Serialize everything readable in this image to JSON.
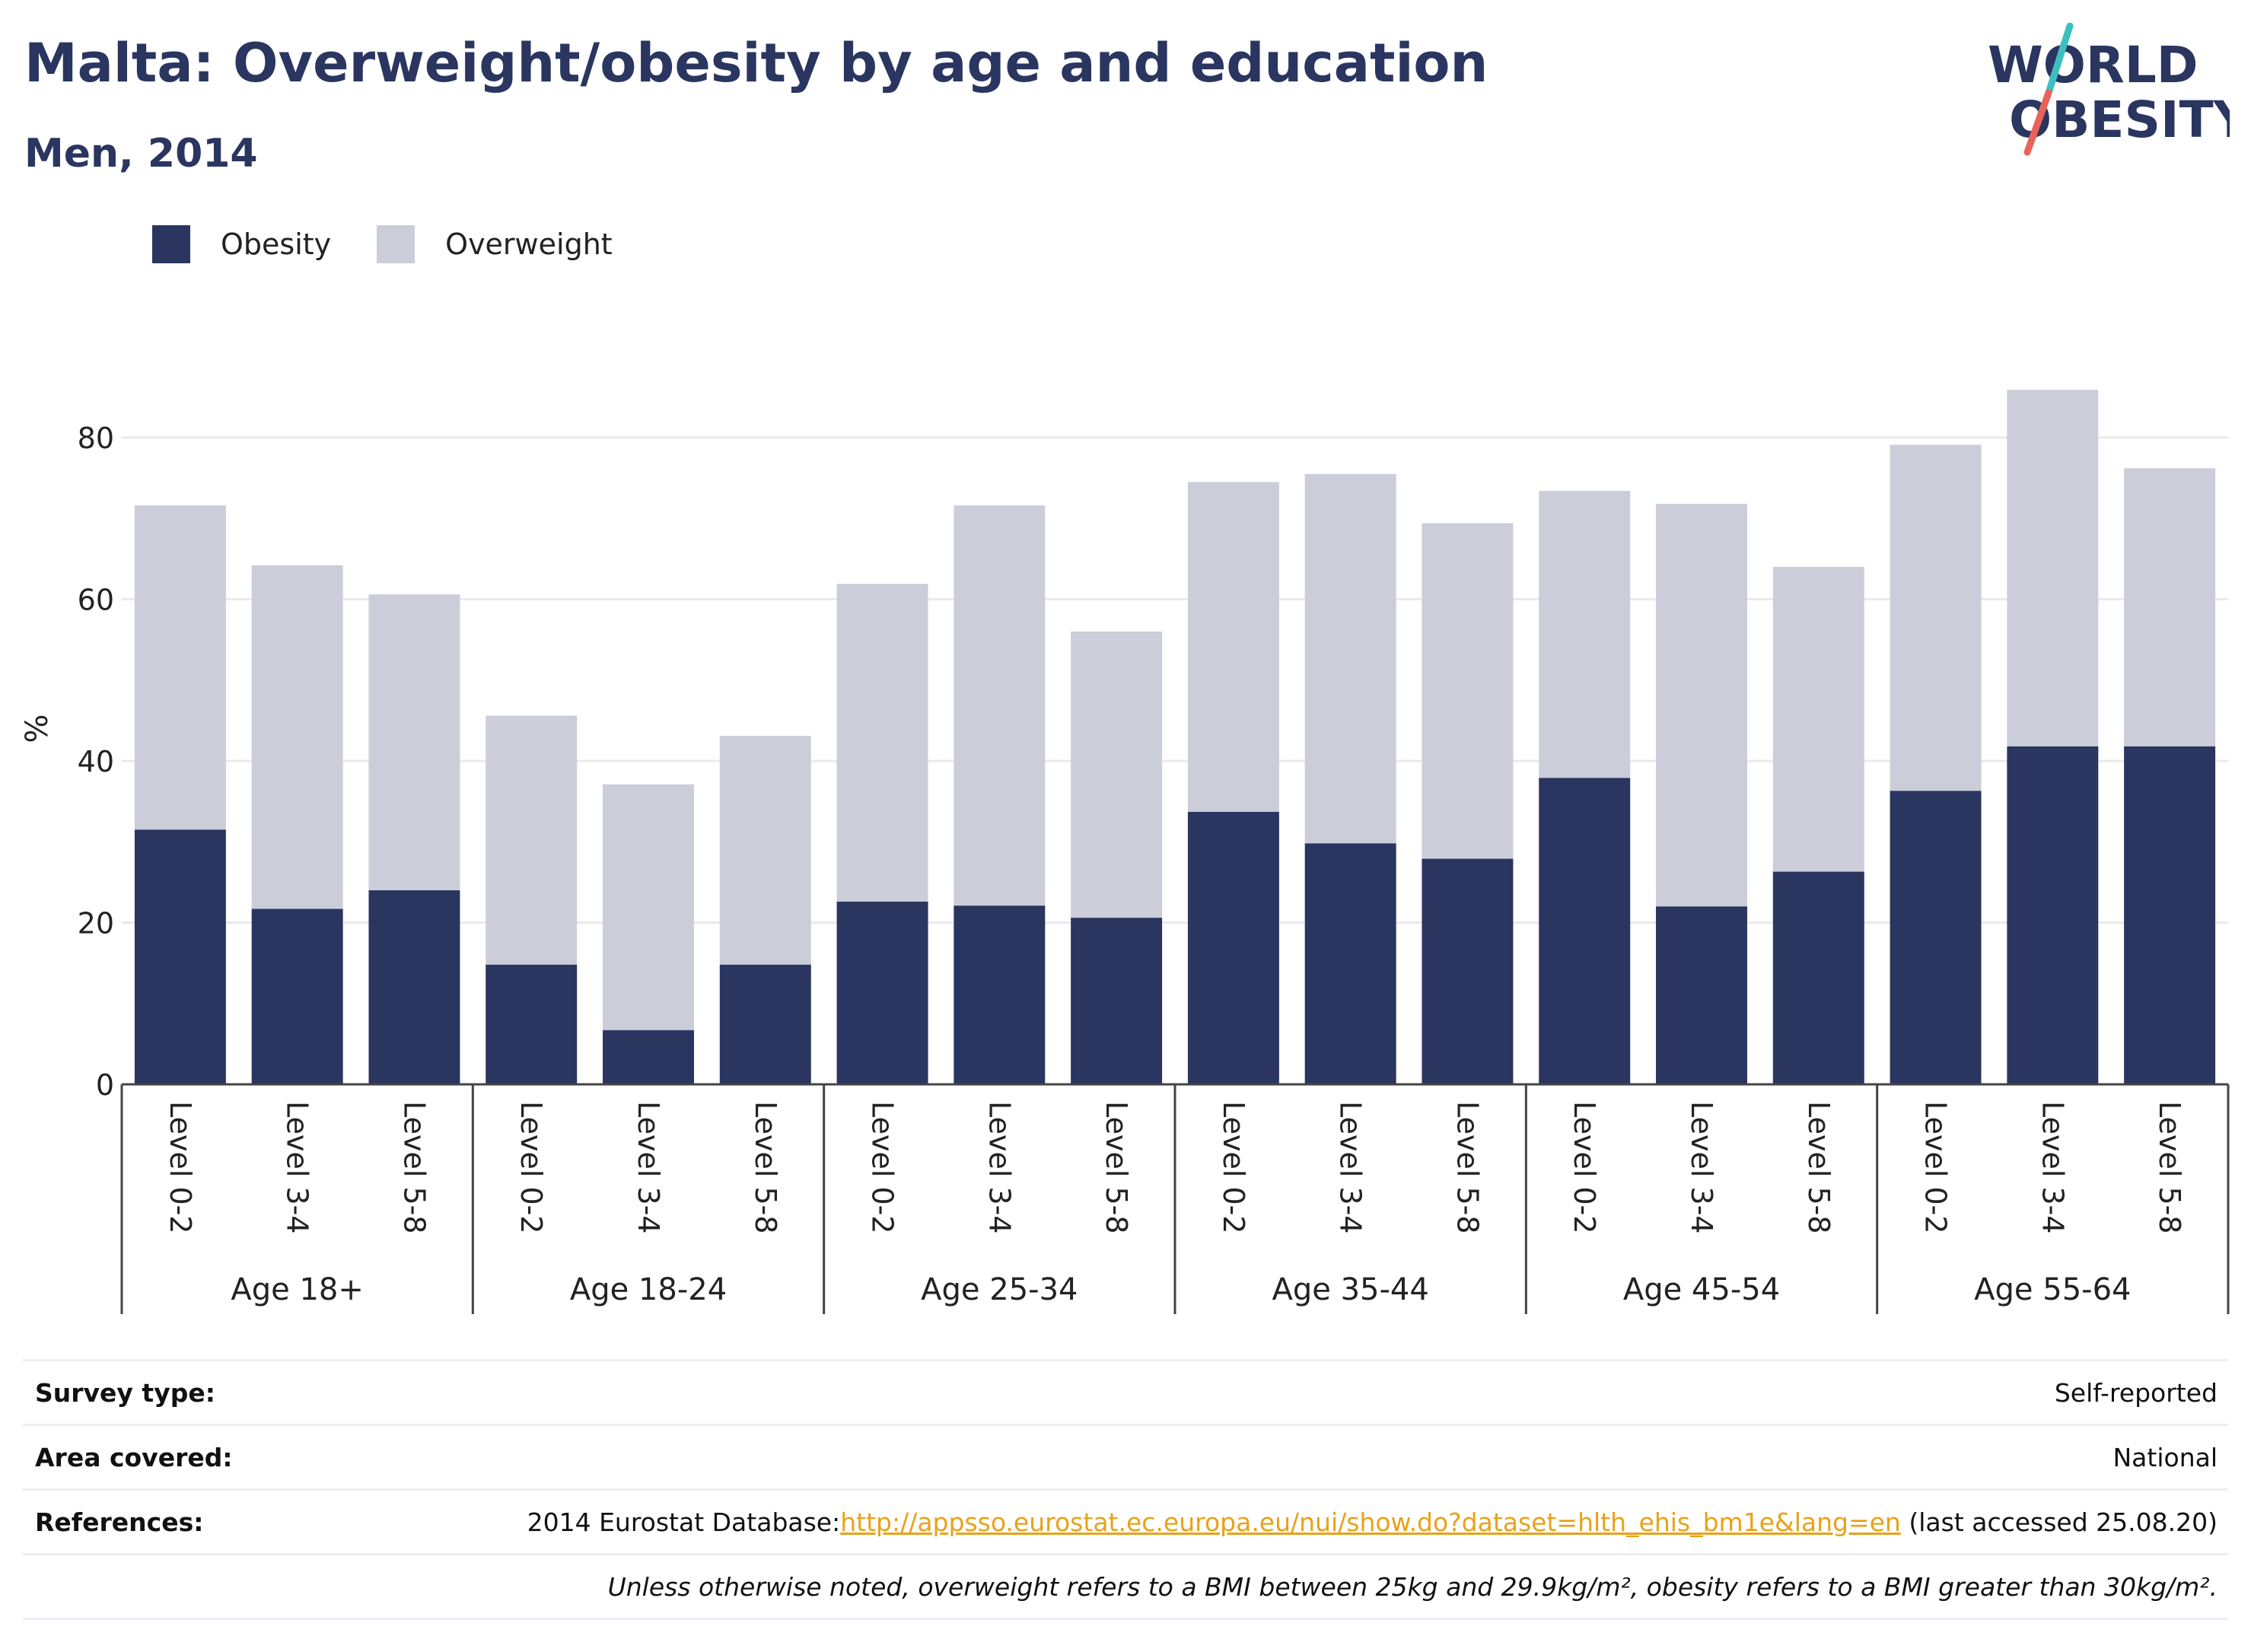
{
  "title": "Malta: Overweight/obesity by age and education",
  "subtitle": "Men, 2014",
  "logo": {
    "line1": "WORLD",
    "line2": "OBESITY",
    "accent_teal": "#3cbfbf",
    "accent_red": "#e8645a"
  },
  "legend": [
    {
      "label": "Obesity",
      "color": "#2a3560"
    },
    {
      "label": "Overweight",
      "color": "#cbcdd9"
    }
  ],
  "chart_data": {
    "type": "bar",
    "stacked": true,
    "ylabel": "%",
    "ylim": [
      0,
      88
    ],
    "yticks": [
      0,
      20,
      40,
      60,
      80
    ],
    "grid": true,
    "legend_position": "top-left",
    "groups": [
      "Age 18+",
      "Age 18-24",
      "Age 25-34",
      "Age 35-44",
      "Age 45-54",
      "Age 55-64"
    ],
    "categories": [
      "Level 0-2",
      "Level 3-4",
      "Level 5-8",
      "Level 0-2",
      "Level 3-4",
      "Level 5-8",
      "Level 0-2",
      "Level 3-4",
      "Level 5-8",
      "Level 0-2",
      "Level 3-4",
      "Level 5-8",
      "Level 0-2",
      "Level 3-4",
      "Level 5-8",
      "Level 0-2",
      "Level 3-4",
      "Level 5-8"
    ],
    "series": [
      {
        "name": "Obesity",
        "color": "#2a3560",
        "values": [
          31.5,
          21.7,
          24.0,
          14.8,
          6.7,
          14.8,
          22.6,
          22.1,
          20.6,
          33.7,
          29.8,
          27.9,
          37.9,
          22.0,
          26.3,
          36.3,
          41.8,
          41.8
        ]
      },
      {
        "name": "Overweight",
        "color": "#cbcdd9",
        "values": [
          40.1,
          42.5,
          36.6,
          30.8,
          30.4,
          28.3,
          39.3,
          49.5,
          35.4,
          40.8,
          45.7,
          41.5,
          35.5,
          49.8,
          37.7,
          42.8,
          44.1,
          34.4
        ]
      }
    ]
  },
  "info": {
    "survey_type_label": "Survey type:",
    "survey_type_value": "Self-reported",
    "area_label": "Area covered:",
    "area_value": "National",
    "references_label": "References:",
    "references_prefix": "2014 Eurostat Database:",
    "references_link": "http://appsso.eurostat.ec.europa.eu/nui/show.do?dataset=hlth_ehis_bm1e&lang=en",
    "references_suffix": " (last accessed 25.08.20)",
    "note": "Unless otherwise noted, overweight refers to a BMI between 25kg and 29.9kg/m², obesity refers to a BMI greater than 30kg/m²."
  }
}
